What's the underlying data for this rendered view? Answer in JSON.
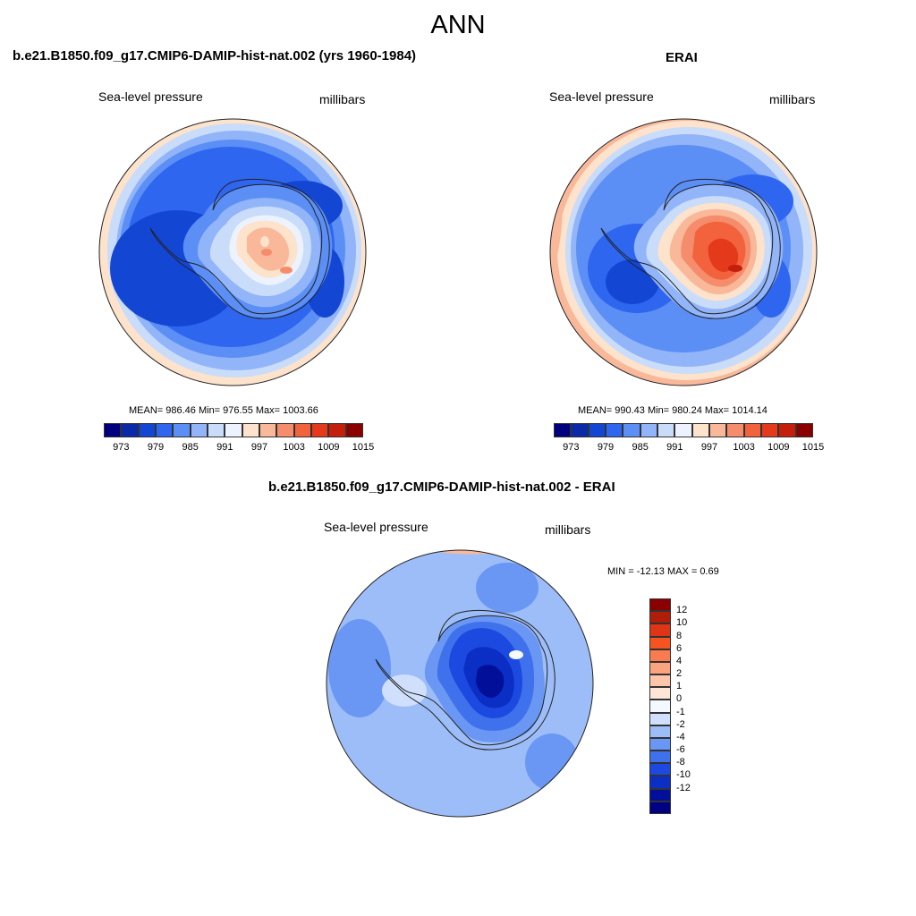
{
  "main_title": "ANN",
  "panels": {
    "model": {
      "title": "b.e21.B1850.f09_g17.CMIP6-DAMIP-hist-nat.002 (yrs 1960-1984)",
      "variable": "Sea-level pressure",
      "units": "millibars",
      "stats": "MEAN= 986.46  Min= 976.55  Max= 1003.66"
    },
    "obs": {
      "title": "ERAI",
      "variable": "Sea-level pressure",
      "units": "millibars",
      "stats": "MEAN= 990.43  Min= 980.24  Max= 1014.14"
    },
    "diff": {
      "title": "b.e21.B1850.f09_g17.CMIP6-DAMIP-hist-nat.002 - ERAI",
      "variable": "Sea-level pressure",
      "units": "millibars",
      "stats": "MIN = -12.13 MAX =   0.69"
    }
  },
  "colorbar_main": {
    "colors": [
      "#00007f",
      "#0a2aa8",
      "#1446d4",
      "#2f66f0",
      "#5b8ff6",
      "#92b4f8",
      "#c9dcfa",
      "#edf3fe",
      "#fde2cc",
      "#f9b89a",
      "#f58d6c",
      "#f2623d",
      "#e5391c",
      "#c31f0c",
      "#8a0000"
    ],
    "labels": [
      "973",
      "979",
      "985",
      "991",
      "997",
      "1003",
      "1009",
      "1015"
    ]
  },
  "colorbar_diff": {
    "colors_top_to_bottom": [
      "#8a0000",
      "#b01e0a",
      "#e03416",
      "#f5531f",
      "#f97c50",
      "#fba27e",
      "#fdc6aa",
      "#fde6d6",
      "#f4f8ff",
      "#cfdffc",
      "#9dbdf8",
      "#6a97f3",
      "#3f71ec",
      "#1c4ae0",
      "#0b2ec4",
      "#020f98",
      "#000082"
    ],
    "labels": [
      "12",
      "10",
      "8",
      "6",
      "4",
      "2",
      "1",
      "0",
      "-1",
      "-2",
      "-4",
      "-6",
      "-8",
      "-10",
      "-12"
    ]
  }
}
